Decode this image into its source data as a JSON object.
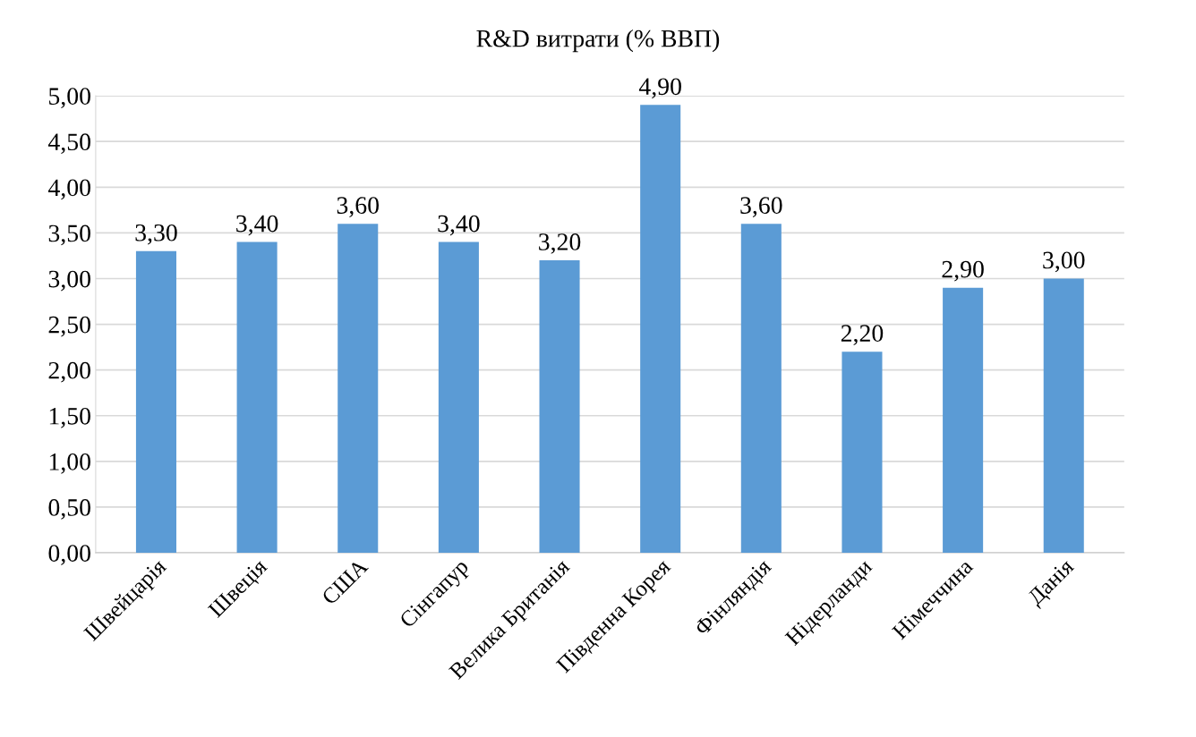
{
  "chart_data": {
    "type": "bar",
    "title": "R&D витрати (% ВВП)",
    "categories": [
      "Швейцарія",
      "Швеція",
      "США",
      "Сінгапур",
      "Велика Британія",
      "Південна Корея",
      "Фінляндія",
      "Нідерланди",
      "Німеччина",
      "Данія"
    ],
    "values": [
      3.3,
      3.4,
      3.6,
      3.4,
      3.2,
      4.9,
      3.6,
      2.2,
      2.9,
      3.0
    ],
    "value_labels": [
      "3,30",
      "3,40",
      "3,60",
      "3,40",
      "3,20",
      "4,90",
      "3,60",
      "2,20",
      "2,90",
      "3,00"
    ],
    "color": "#5b9bd5",
    "ylim": [
      0,
      5
    ],
    "yticks": [
      {
        "value": 0,
        "label": "0,00"
      },
      {
        "value": 0.5,
        "label": "0,50"
      },
      {
        "value": 1,
        "label": "1,00"
      },
      {
        "value": 1.5,
        "label": "1,50"
      },
      {
        "value": 2,
        "label": "2,00"
      },
      {
        "value": 2.5,
        "label": "2,50"
      },
      {
        "value": 3,
        "label": "3,00"
      },
      {
        "value": 3.5,
        "label": "3,50"
      },
      {
        "value": 4,
        "label": "4,00"
      },
      {
        "value": 4.5,
        "label": "4,50"
      },
      {
        "value": 5,
        "label": "5,00"
      }
    ],
    "grid": "y"
  }
}
